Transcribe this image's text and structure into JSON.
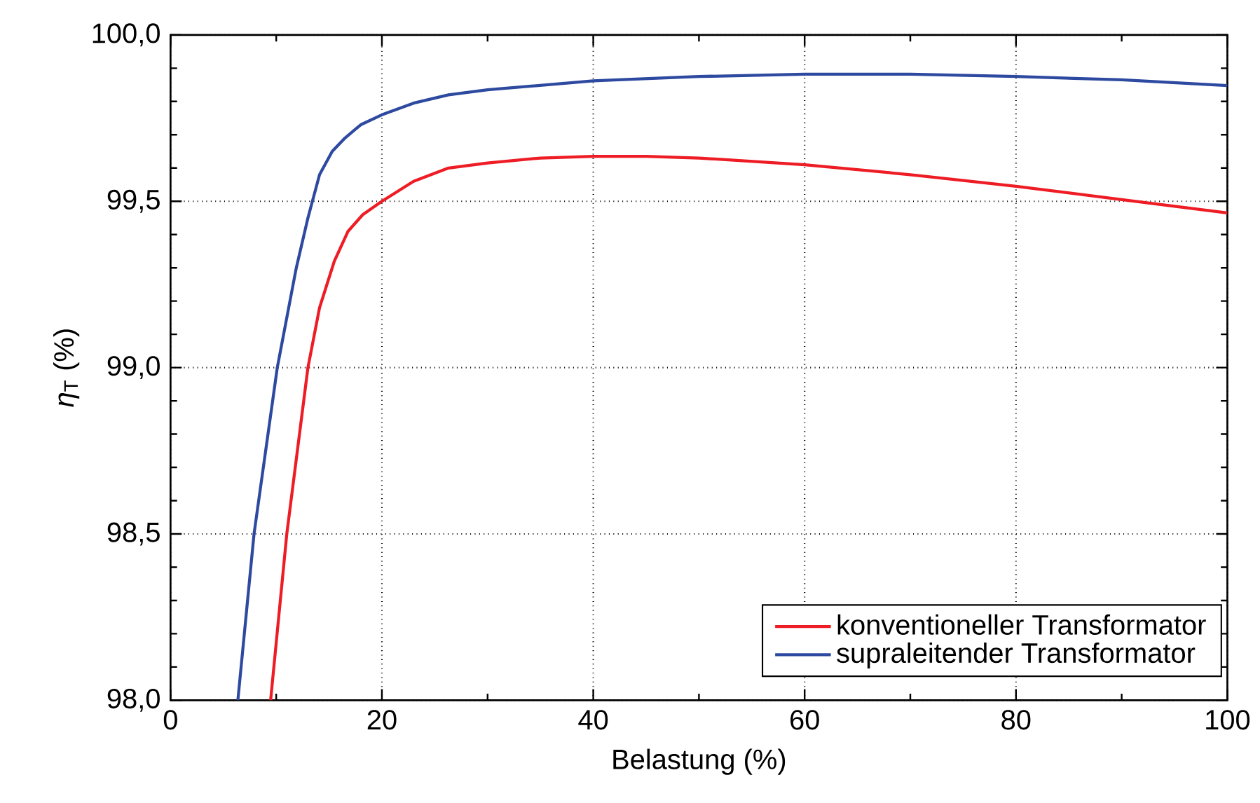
{
  "chart_data": {
    "type": "line",
    "xlabel": "Belastung (%)",
    "ylabel": "*η*$_{T}$ (%)",
    "xlim": [
      0,
      100
    ],
    "ylim": [
      98.0,
      100.0
    ],
    "xticks": [
      0,
      20,
      40,
      60,
      80,
      100
    ],
    "yticks": [
      {
        "value": 98.0,
        "label": "98,0"
      },
      {
        "value": 98.5,
        "label": "98,5"
      },
      {
        "value": 99.0,
        "label": "99,0"
      },
      {
        "value": 99.5,
        "label": "99,5"
      },
      {
        "value": 100.0,
        "label": "100,0"
      }
    ],
    "grid": true,
    "legend": "bottom right",
    "marker": "none",
    "line_style": "solid",
    "series": [
      {
        "name": "konventioneller Transformator",
        "color": "#ee1c24",
        "x": [
          9.47,
          11.0,
          13.0,
          14.1,
          15.5,
          16.8,
          18.2,
          20,
          23,
          26.3,
          30,
          35,
          40,
          45,
          50,
          60,
          70,
          80,
          90,
          100
        ],
        "values": [
          98.0,
          98.5,
          99.0,
          99.18,
          99.32,
          99.41,
          99.46,
          99.5,
          99.56,
          99.6,
          99.615,
          99.63,
          99.635,
          99.635,
          99.63,
          99.61,
          99.58,
          99.545,
          99.505,
          99.465
        ]
      },
      {
        "name": "supraleitender Transformator",
        "color": "#2e4aa0",
        "x": [
          6.37,
          7.9,
          10.1,
          11.9,
          13.0,
          14.1,
          15.3,
          16.5,
          18.0,
          20,
          23,
          26.3,
          30,
          40,
          50,
          60,
          70,
          80,
          90,
          100
        ],
        "values": [
          98.0,
          98.5,
          99.0,
          99.3,
          99.45,
          99.58,
          99.65,
          99.69,
          99.73,
          99.76,
          99.795,
          99.82,
          99.835,
          99.862,
          99.875,
          99.882,
          99.882,
          99.875,
          99.865,
          99.848
        ]
      }
    ]
  }
}
